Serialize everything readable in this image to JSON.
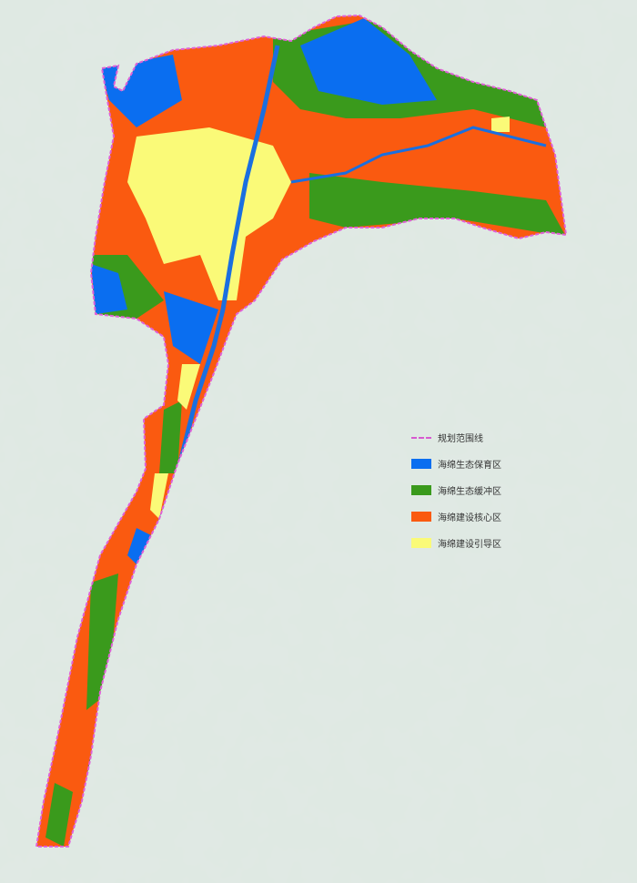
{
  "legend": {
    "items": [
      {
        "label": "规划范围线",
        "color": "#e060d8",
        "kind": "line"
      },
      {
        "label": "海绵生态保育区",
        "color": "#0a6ef0",
        "kind": "fill"
      },
      {
        "label": "海绵生态缓冲区",
        "color": "#3a9a1c",
        "kind": "fill"
      },
      {
        "label": "海绵建设核心区",
        "color": "#fa5a10",
        "kind": "fill"
      },
      {
        "label": "海绵建设引导区",
        "color": "#fafa78",
        "kind": "fill"
      }
    ]
  },
  "colors": {
    "background": "#dfe9e3",
    "terrain": "#c9d9cf",
    "river": "#1a6fe0"
  }
}
